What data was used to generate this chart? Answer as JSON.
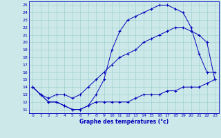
{
  "xlabel": "Graphe des températures (°c)",
  "xmin": 0,
  "xmax": 23,
  "ymin": 11,
  "ymax": 25,
  "background_color": "#cce8e8",
  "grid_color": "#99cccc",
  "line_color": "#0000bb",
  "curve1_x": [
    0,
    1,
    2,
    3,
    4,
    5,
    6,
    7,
    8,
    9,
    10,
    11,
    12,
    13,
    14,
    15,
    16,
    17,
    18,
    19,
    20,
    21,
    22,
    23
  ],
  "curve1_y": [
    14,
    13,
    12,
    12,
    11.5,
    11,
    11,
    11.5,
    13,
    15,
    19,
    21.5,
    23,
    23.5,
    24,
    24.5,
    25,
    25,
    24.5,
    24,
    22,
    18.5,
    16,
    16
  ],
  "curve2_x": [
    0,
    1,
    2,
    3,
    4,
    5,
    6,
    7,
    8,
    9,
    10,
    11,
    12,
    13,
    14,
    15,
    16,
    17,
    18,
    19,
    20,
    21,
    22,
    23
  ],
  "curve2_y": [
    14,
    13,
    12.5,
    13,
    13,
    12.5,
    13,
    14,
    15,
    16,
    17,
    18,
    18.5,
    19,
    20,
    20.5,
    21,
    21.5,
    22,
    22,
    21.5,
    21,
    20,
    15
  ],
  "curve3_x": [
    0,
    1,
    2,
    3,
    4,
    5,
    6,
    7,
    8,
    9,
    10,
    11,
    12,
    13,
    14,
    15,
    16,
    17,
    18,
    19,
    20,
    21,
    22,
    23
  ],
  "curve3_y": [
    14,
    13,
    12,
    12,
    11.5,
    11,
    11,
    11.5,
    12,
    12,
    12,
    12,
    12,
    12.5,
    13,
    13,
    13,
    13.5,
    13.5,
    14,
    14,
    14,
    14.5,
    15
  ]
}
